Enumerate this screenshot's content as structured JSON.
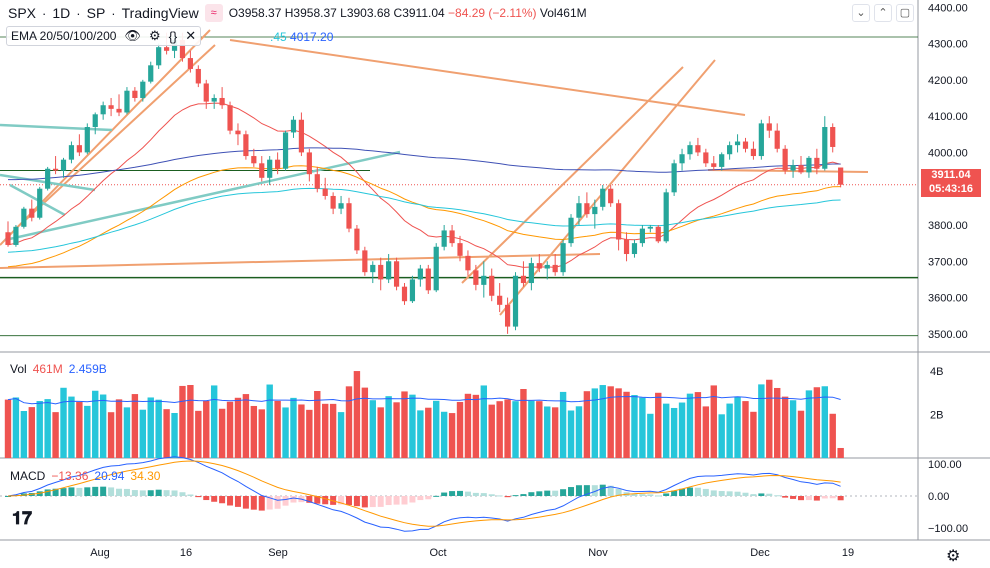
{
  "header": {
    "symbol": "SPX",
    "interval": "1D",
    "exchange": "SP",
    "source": "TradingView",
    "open": "O3958.37",
    "high": "H3958.37",
    "low": "L3903.68",
    "close": "C3911.04",
    "change": "−84.29 (−2.11%)",
    "volume_label": "Vol",
    "volume_value": "461M"
  },
  "ema": {
    "label": "EMA 20/50/100/200",
    "value_partial": ".45",
    "value_200": "4017.20"
  },
  "price_axis": {
    "ticks": [
      "4400.00",
      "4300.00",
      "4200.00",
      "4100.00",
      "4000.00",
      "3800.00",
      "3700.00",
      "3600.00",
      "3500.00"
    ],
    "last_price": "3911.04",
    "countdown": "05:43:16"
  },
  "volume_pane": {
    "label": "Vol",
    "value": "461M",
    "ma_value": "2.459B",
    "ticks": [
      "4B",
      "2B"
    ]
  },
  "macd_pane": {
    "label": "MACD",
    "hist": "−13.36",
    "macd": "20.94",
    "signal": "34.30",
    "ticks": [
      "100.00",
      "0.00",
      "−100.00"
    ]
  },
  "time_axis": {
    "labels": [
      "Aug",
      "16",
      "Sep",
      "Oct",
      "Nov",
      "Dec",
      "19"
    ]
  },
  "colors": {
    "up": "#26a69a",
    "down": "#ef5350",
    "ema20": "#ef5350",
    "ema50": "#ff9800",
    "ema100": "#26c6da",
    "ema200": "#3f51b5",
    "volume_up": "#26c6da",
    "volume_down": "#ef5350",
    "macd_line": "#2962ff",
    "signal_line": "#ff9800"
  },
  "chart_data": {
    "type": "candlestick",
    "title": "SPX · 1D · SP",
    "candles": [
      [
        3780,
        3810,
        3740,
        3745
      ],
      [
        3745,
        3800,
        3740,
        3795
      ],
      [
        3795,
        3850,
        3790,
        3845
      ],
      [
        3845,
        3870,
        3810,
        3820
      ],
      [
        3820,
        3905,
        3815,
        3900
      ],
      [
        3900,
        3960,
        3895,
        3955
      ],
      [
        3955,
        3990,
        3940,
        3950
      ],
      [
        3950,
        3985,
        3930,
        3980
      ],
      [
        3980,
        4030,
        3970,
        4020
      ],
      [
        4020,
        4050,
        3990,
        4000
      ],
      [
        4000,
        4080,
        3995,
        4070
      ],
      [
        4070,
        4110,
        4050,
        4105
      ],
      [
        4105,
        4140,
        4090,
        4130
      ],
      [
        4130,
        4150,
        4100,
        4120
      ],
      [
        4120,
        4160,
        4100,
        4110
      ],
      [
        4110,
        4180,
        4105,
        4170
      ],
      [
        4170,
        4180,
        4140,
        4150
      ],
      [
        4150,
        4200,
        4140,
        4195
      ],
      [
        4195,
        4250,
        4190,
        4240
      ],
      [
        4240,
        4300,
        4230,
        4290
      ],
      [
        4290,
        4330,
        4270,
        4280
      ],
      [
        4280,
        4320,
        4260,
        4310
      ],
      [
        4310,
        4330,
        4250,
        4260
      ],
      [
        4260,
        4280,
        4220,
        4230
      ],
      [
        4230,
        4240,
        4180,
        4190
      ],
      [
        4190,
        4200,
        4120,
        4140
      ],
      [
        4140,
        4160,
        4120,
        4150
      ],
      [
        4150,
        4180,
        4120,
        4130
      ],
      [
        4130,
        4140,
        4050,
        4060
      ],
      [
        4060,
        4080,
        4020,
        4050
      ],
      [
        4050,
        4060,
        3980,
        3990
      ],
      [
        3990,
        4010,
        3960,
        3970
      ],
      [
        3970,
        3990,
        3920,
        3930
      ],
      [
        3930,
        3990,
        3910,
        3980
      ],
      [
        3980,
        4000,
        3940,
        3955
      ],
      [
        3955,
        4060,
        3950,
        4055
      ],
      [
        4055,
        4100,
        4040,
        4090
      ],
      [
        4090,
        4110,
        3990,
        4000
      ],
      [
        4000,
        4010,
        3920,
        3940
      ],
      [
        3940,
        3960,
        3890,
        3900
      ],
      [
        3900,
        3930,
        3870,
        3880
      ],
      [
        3880,
        3890,
        3830,
        3845
      ],
      [
        3845,
        3880,
        3830,
        3860
      ],
      [
        3860,
        3875,
        3780,
        3790
      ],
      [
        3790,
        3800,
        3720,
        3730
      ],
      [
        3730,
        3740,
        3660,
        3670
      ],
      [
        3670,
        3700,
        3640,
        3690
      ],
      [
        3690,
        3710,
        3620,
        3650
      ],
      [
        3650,
        3720,
        3640,
        3700
      ],
      [
        3700,
        3710,
        3620,
        3630
      ],
      [
        3630,
        3640,
        3580,
        3590
      ],
      [
        3590,
        3660,
        3585,
        3650
      ],
      [
        3650,
        3690,
        3630,
        3680
      ],
      [
        3680,
        3690,
        3610,
        3620
      ],
      [
        3620,
        3750,
        3615,
        3740
      ],
      [
        3740,
        3800,
        3730,
        3785
      ],
      [
        3785,
        3800,
        3740,
        3750
      ],
      [
        3750,
        3770,
        3700,
        3715
      ],
      [
        3715,
        3730,
        3660,
        3675
      ],
      [
        3675,
        3690,
        3620,
        3635
      ],
      [
        3635,
        3700,
        3600,
        3660
      ],
      [
        3660,
        3680,
        3590,
        3605
      ],
      [
        3605,
        3640,
        3560,
        3580
      ],
      [
        3580,
        3600,
        3500,
        3520
      ],
      [
        3520,
        3670,
        3510,
        3660
      ],
      [
        3660,
        3700,
        3630,
        3640
      ],
      [
        3640,
        3710,
        3620,
        3695
      ],
      [
        3695,
        3720,
        3670,
        3680
      ],
      [
        3680,
        3700,
        3650,
        3690
      ],
      [
        3690,
        3720,
        3660,
        3670
      ],
      [
        3670,
        3760,
        3660,
        3750
      ],
      [
        3750,
        3830,
        3740,
        3820
      ],
      [
        3820,
        3880,
        3800,
        3860
      ],
      [
        3860,
        3890,
        3820,
        3830
      ],
      [
        3830,
        3870,
        3790,
        3850
      ],
      [
        3850,
        3910,
        3840,
        3900
      ],
      [
        3900,
        3910,
        3850,
        3860
      ],
      [
        3860,
        3870,
        3730,
        3760
      ],
      [
        3760,
        3780,
        3700,
        3720
      ],
      [
        3720,
        3760,
        3710,
        3750
      ],
      [
        3750,
        3800,
        3740,
        3790
      ],
      [
        3790,
        3800,
        3780,
        3795
      ],
      [
        3795,
        3800,
        3750,
        3755
      ],
      [
        3755,
        3900,
        3750,
        3890
      ],
      [
        3890,
        3980,
        3880,
        3970
      ],
      [
        3970,
        4010,
        3950,
        3995
      ],
      [
        3995,
        4030,
        3980,
        4020
      ],
      [
        4020,
        4040,
        3990,
        4000
      ],
      [
        4000,
        4010,
        3960,
        3970
      ],
      [
        3970,
        3990,
        3950,
        3960
      ],
      [
        3960,
        4000,
        3950,
        3995
      ],
      [
        3995,
        4030,
        3980,
        4020
      ],
      [
        4020,
        4050,
        4000,
        4030
      ],
      [
        4030,
        4040,
        4000,
        4010
      ],
      [
        4010,
        4030,
        3980,
        3990
      ],
      [
        3990,
        4090,
        3980,
        4080
      ],
      [
        4080,
        4100,
        4040,
        4060
      ],
      [
        4060,
        4080,
        4000,
        4010
      ],
      [
        4010,
        4020,
        3940,
        3950
      ],
      [
        3950,
        3980,
        3930,
        3965
      ],
      [
        3965,
        3990,
        3940,
        3945
      ],
      [
        3945,
        3990,
        3930,
        3985
      ],
      [
        3985,
        4010,
        3940,
        3955
      ],
      [
        3955,
        4100,
        3950,
        4070
      ],
      [
        4070,
        4080,
        4000,
        4015
      ],
      [
        3958.37,
        3958.37,
        3903.68,
        3911.04
      ]
    ],
    "ema_20_last": "—",
    "ema_200_last": 4017.2,
    "volume_last": "461M",
    "volume_ma": "2.459B",
    "macd": {
      "hist": -13.36,
      "macd": 20.94,
      "signal": 34.3
    },
    "ylim": [
      3450,
      4420
    ],
    "x_labels": [
      "Aug",
      "16",
      "Sep",
      "Oct",
      "Nov",
      "Dec",
      "19"
    ]
  }
}
